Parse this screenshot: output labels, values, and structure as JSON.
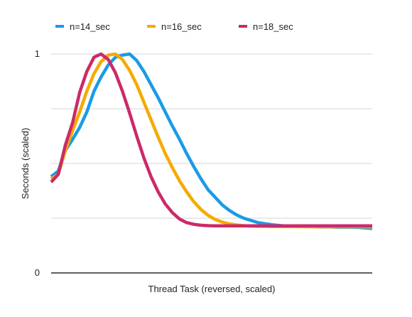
{
  "chart_data": {
    "type": "line",
    "title": "",
    "xlabel": "Thread Task (reversed, scaled)",
    "ylabel": "Seconds (scaled)",
    "ylim": [
      0,
      1
    ],
    "y_ticks": [
      {
        "value": 0,
        "label": "0"
      },
      {
        "value": 0.25,
        "label": ""
      },
      {
        "value": 0.5,
        "label": ""
      },
      {
        "value": 0.75,
        "label": ""
      },
      {
        "value": 1,
        "label": "1"
      }
    ],
    "grid": true,
    "legend_position": "top",
    "x": [
      0,
      0.0222,
      0.0444,
      0.0667,
      0.0889,
      0.1111,
      0.1333,
      0.1556,
      0.1778,
      0.2,
      0.2222,
      0.2444,
      0.2667,
      0.2889,
      0.3111,
      0.3333,
      0.3556,
      0.3778,
      0.4,
      0.4222,
      0.4444,
      0.4667,
      0.4889,
      0.5111,
      0.5333,
      0.5556,
      0.5778,
      0.6,
      0.6222,
      0.6444,
      0.6667,
      0.6889,
      0.7111,
      0.7333,
      0.7556,
      0.7778,
      0.8,
      0.8222,
      0.8444,
      0.8667,
      0.8889,
      0.9111,
      0.9333,
      0.9556,
      0.9778,
      1
    ],
    "series": [
      {
        "name": "n=14_sec",
        "color": "#1a9be6",
        "values": [
          0.44,
          0.465,
          0.56,
          0.61,
          0.665,
          0.735,
          0.83,
          0.895,
          0.95,
          0.985,
          0.995,
          1.0,
          0.97,
          0.92,
          0.86,
          0.8,
          0.735,
          0.67,
          0.61,
          0.545,
          0.485,
          0.43,
          0.38,
          0.345,
          0.31,
          0.285,
          0.265,
          0.25,
          0.24,
          0.23,
          0.225,
          0.22,
          0.217,
          0.214,
          0.213,
          0.212,
          0.212,
          0.211,
          0.21,
          0.21,
          0.209,
          0.209,
          0.209,
          0.208,
          0.206,
          0.203
        ]
      },
      {
        "name": "n=16_sec",
        "color": "#f4ab00",
        "values": [
          0.43,
          0.45,
          0.56,
          0.65,
          0.735,
          0.83,
          0.91,
          0.965,
          0.995,
          1.0,
          0.975,
          0.925,
          0.86,
          0.78,
          0.7,
          0.62,
          0.545,
          0.48,
          0.42,
          0.37,
          0.325,
          0.29,
          0.263,
          0.244,
          0.232,
          0.224,
          0.219,
          0.216,
          0.214,
          0.213,
          0.213,
          0.212,
          0.212,
          0.212,
          0.212,
          0.211,
          0.211,
          0.211,
          0.211,
          0.211,
          0.211,
          0.211,
          0.211,
          0.211,
          0.211,
          0.21
        ]
      },
      {
        "name": "n=18_sec",
        "color": "#cb2a69",
        "values": [
          0.415,
          0.45,
          0.585,
          0.685,
          0.825,
          0.92,
          0.985,
          1.0,
          0.975,
          0.915,
          0.83,
          0.73,
          0.625,
          0.525,
          0.44,
          0.37,
          0.315,
          0.275,
          0.246,
          0.23,
          0.222,
          0.218,
          0.216,
          0.215,
          0.215,
          0.215,
          0.215,
          0.215,
          0.215,
          0.215,
          0.215,
          0.215,
          0.215,
          0.215,
          0.215,
          0.215,
          0.215,
          0.215,
          0.215,
          0.215,
          0.215,
          0.215,
          0.215,
          0.215,
          0.215,
          0.215
        ]
      }
    ]
  }
}
